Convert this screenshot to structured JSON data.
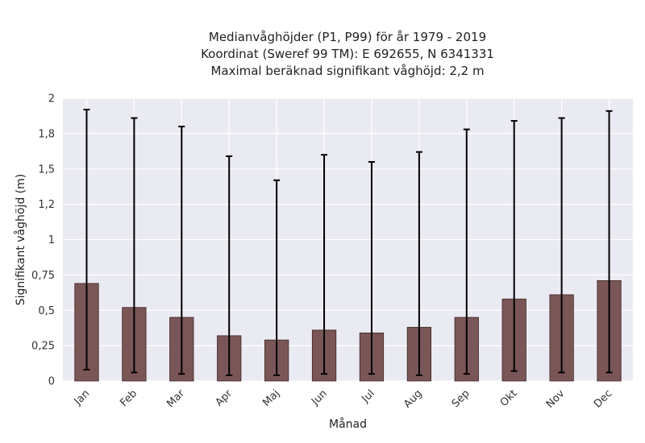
{
  "chart_data": {
    "type": "bar",
    "title_lines": [
      "Medianvåghöjder (P1, P99) för år 1979 - 2019",
      "Koordinat (Sweref 99 TM): E 692655, N 6341331",
      "Maximal beräknad signifikant våghöjd: 2,2 m"
    ],
    "xlabel": "Månad",
    "ylabel": "Signifikant våghöjd (m)",
    "categories": [
      "Jan",
      "Feb",
      "Mar",
      "Apr",
      "Maj",
      "Jun",
      "Jul",
      "Aug",
      "Sep",
      "Okt",
      "Nov",
      "Dec"
    ],
    "values": [
      0.69,
      0.52,
      0.45,
      0.32,
      0.29,
      0.36,
      0.34,
      0.38,
      0.45,
      0.58,
      0.61,
      0.71
    ],
    "err_low": [
      0.08,
      0.06,
      0.05,
      0.04,
      0.04,
      0.05,
      0.05,
      0.04,
      0.05,
      0.07,
      0.06,
      0.06
    ],
    "err_high": [
      1.92,
      1.86,
      1.8,
      1.59,
      1.42,
      1.6,
      1.55,
      1.62,
      1.78,
      1.84,
      1.86,
      1.91
    ],
    "ylim": [
      0,
      2
    ],
    "yticks": [
      0,
      0.25,
      0.5,
      0.75,
      1,
      1.25,
      1.5,
      1.75,
      2
    ],
    "ytick_labels": [
      "0",
      "0,25",
      "0,5",
      "0,75",
      "1",
      "1,2",
      "1,5",
      "1,8",
      "2"
    ],
    "grid": true,
    "colors": {
      "bar": "#7b5656",
      "plot_bg": "#eaeaf2",
      "errbar": "#000000"
    }
  }
}
